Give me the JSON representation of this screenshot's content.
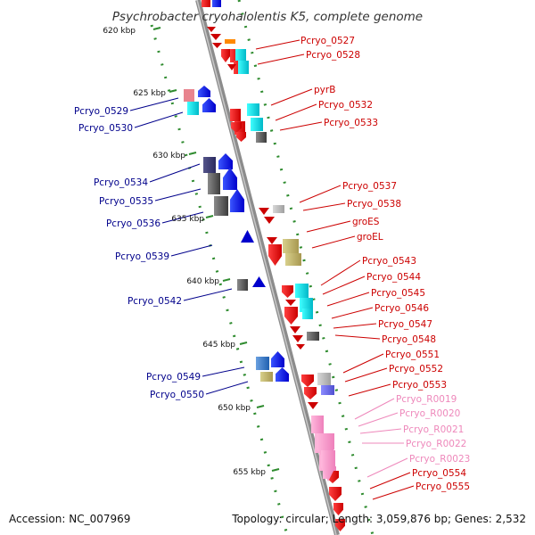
{
  "title": "Psychrobacter cryohalolentis K5, complete genome",
  "accession": "Accession: NC_007969",
  "summary": "Topology: circular; Length: 3,059,876 bp; Genes: 2,532",
  "colors": {
    "forward_label": "#cc0000",
    "reverse_label": "#00008b",
    "rna_label": "#ee88bb",
    "backbone": "#8c8c8c",
    "dots": "#2e8b2e"
  },
  "ticks": [
    "620 kbp",
    "625 kbp",
    "630 kbp",
    "635 kbp",
    "640 kbp",
    "645 kbp",
    "650 kbp",
    "655 kbp"
  ],
  "forward_labels": [
    "Pcryo_0527",
    "Pcryo_0528",
    "pyrB",
    "Pcryo_0532",
    "Pcryo_0533",
    "Pcryo_0537",
    "Pcryo_0538",
    "groES",
    "groEL",
    "Pcryo_0543",
    "Pcryo_0544",
    "Pcryo_0545",
    "Pcryo_0546",
    "Pcryo_0547",
    "Pcryo_0548",
    "Pcryo_0551",
    "Pcryo_0552",
    "Pcryo_0553",
    "Pcryo_R0019",
    "Pcryo_R0020",
    "Pcryo_R0021",
    "Pcryo_R0022",
    "Pcryo_R0023",
    "Pcryo_0554",
    "Pcryo_0555"
  ],
  "reverse_labels": [
    "Pcryo_0529",
    "Pcryo_0530",
    "Pcryo_0534",
    "Pcryo_0535",
    "Pcryo_0536",
    "Pcryo_0539",
    "Pcryo_0542",
    "Pcryo_0549",
    "Pcryo_0550"
  ]
}
